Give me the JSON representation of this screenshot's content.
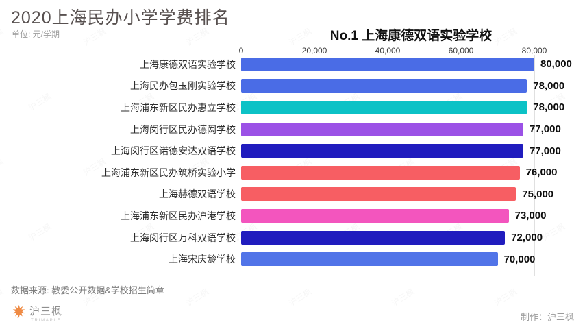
{
  "header": {
    "title": "2020上海民办小学学费排名",
    "subtitle": "单位: 元/学期"
  },
  "chart_data": {
    "type": "bar",
    "orientation": "horizontal",
    "title": "No.1 上海康德双语实验学校",
    "xlabel": "",
    "ylabel": "",
    "unit": "元/学期",
    "xlim": [
      0,
      80000
    ],
    "grid": "off",
    "legend": "none",
    "x_ticks": [
      {
        "value": 0,
        "label": "0"
      },
      {
        "value": 20000,
        "label": "20,000"
      },
      {
        "value": 40000,
        "label": "40,000"
      },
      {
        "value": 60000,
        "label": "60,000"
      },
      {
        "value": 80000,
        "label": "80,000"
      }
    ],
    "bars": [
      {
        "category": "上海康德双语实验学校",
        "value": 80000,
        "label": "80,000",
        "color": "#4a6ce6"
      },
      {
        "category": "上海民办包玉刚实验学校",
        "value": 78000,
        "label": "78,000",
        "color": "#4a6ce6"
      },
      {
        "category": "上海浦东新区民办惠立学校",
        "value": 78000,
        "label": "78,000",
        "color": "#0cc2c6"
      },
      {
        "category": "上海闵行区民办德闳学校",
        "value": 77000,
        "label": "77,000",
        "color": "#9b51e6"
      },
      {
        "category": "上海闵行区诺德安达双语学校",
        "value": 77000,
        "label": "77,000",
        "color": "#201cbe"
      },
      {
        "category": "上海浦东新区民办筑桥实验小学",
        "value": 76000,
        "label": "76,000",
        "color": "#f75e63"
      },
      {
        "category": "上海赫德双语学校",
        "value": 75000,
        "label": "75,000",
        "color": "#f75e63"
      },
      {
        "category": "上海浦东新区民办沪港学校",
        "value": 73000,
        "label": "73,000",
        "color": "#f355be"
      },
      {
        "category": "上海闵行区万科双语学校",
        "value": 72000,
        "label": "72,000",
        "color": "#201cbe"
      },
      {
        "category": "上海宋庆龄学校",
        "value": 70000,
        "label": "70,000",
        "color": "#5174e8"
      }
    ]
  },
  "footer": {
    "source": "数据来源: 教委公开数据&学校招生简章",
    "logo": {
      "icon": "maple-leaf-icon",
      "name": "沪三枫",
      "subtext": "TRIMAPLE"
    },
    "credit": "制作：沪三枫"
  },
  "watermark": "沪三枫",
  "colors": {
    "title": "#585150",
    "subtitle": "#9b9b9b",
    "chart_title": "#111111",
    "axis_tick": "#3d3d3d",
    "bar_label": "#2d2d2d",
    "value_label": "#0d0d0d",
    "gridline": "#e0e0e0",
    "footer_text": "#7d7d7d",
    "logo_orange": "#ef8b45"
  }
}
